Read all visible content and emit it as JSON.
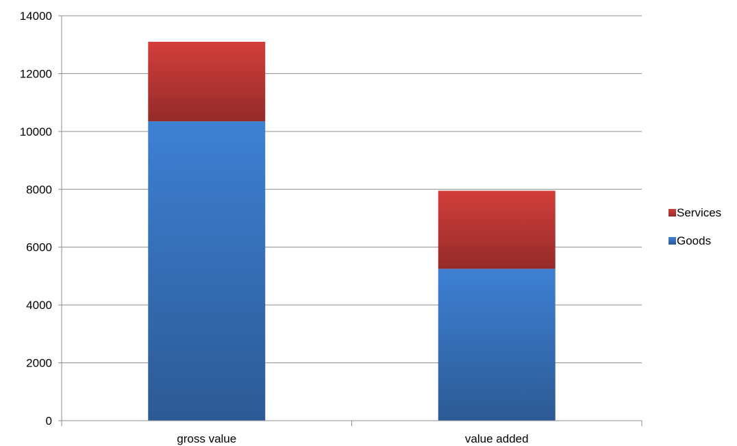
{
  "chart_data": {
    "type": "bar",
    "stacked": true,
    "title": "",
    "xlabel": "",
    "ylabel": "",
    "categories": [
      "gross value",
      "value added"
    ],
    "series": [
      {
        "name": "Goods",
        "values": [
          10350,
          5250
        ],
        "color": "#3a7bd0"
      },
      {
        "name": "Services",
        "values": [
          2750,
          2700
        ],
        "color": "#c93a37"
      }
    ],
    "ylim": [
      0,
      14000
    ],
    "yticks": [
      0,
      2000,
      4000,
      6000,
      8000,
      10000,
      12000,
      14000
    ],
    "grid": true,
    "legend": {
      "placement": "right",
      "entries": [
        "Services",
        "Goods"
      ]
    }
  }
}
